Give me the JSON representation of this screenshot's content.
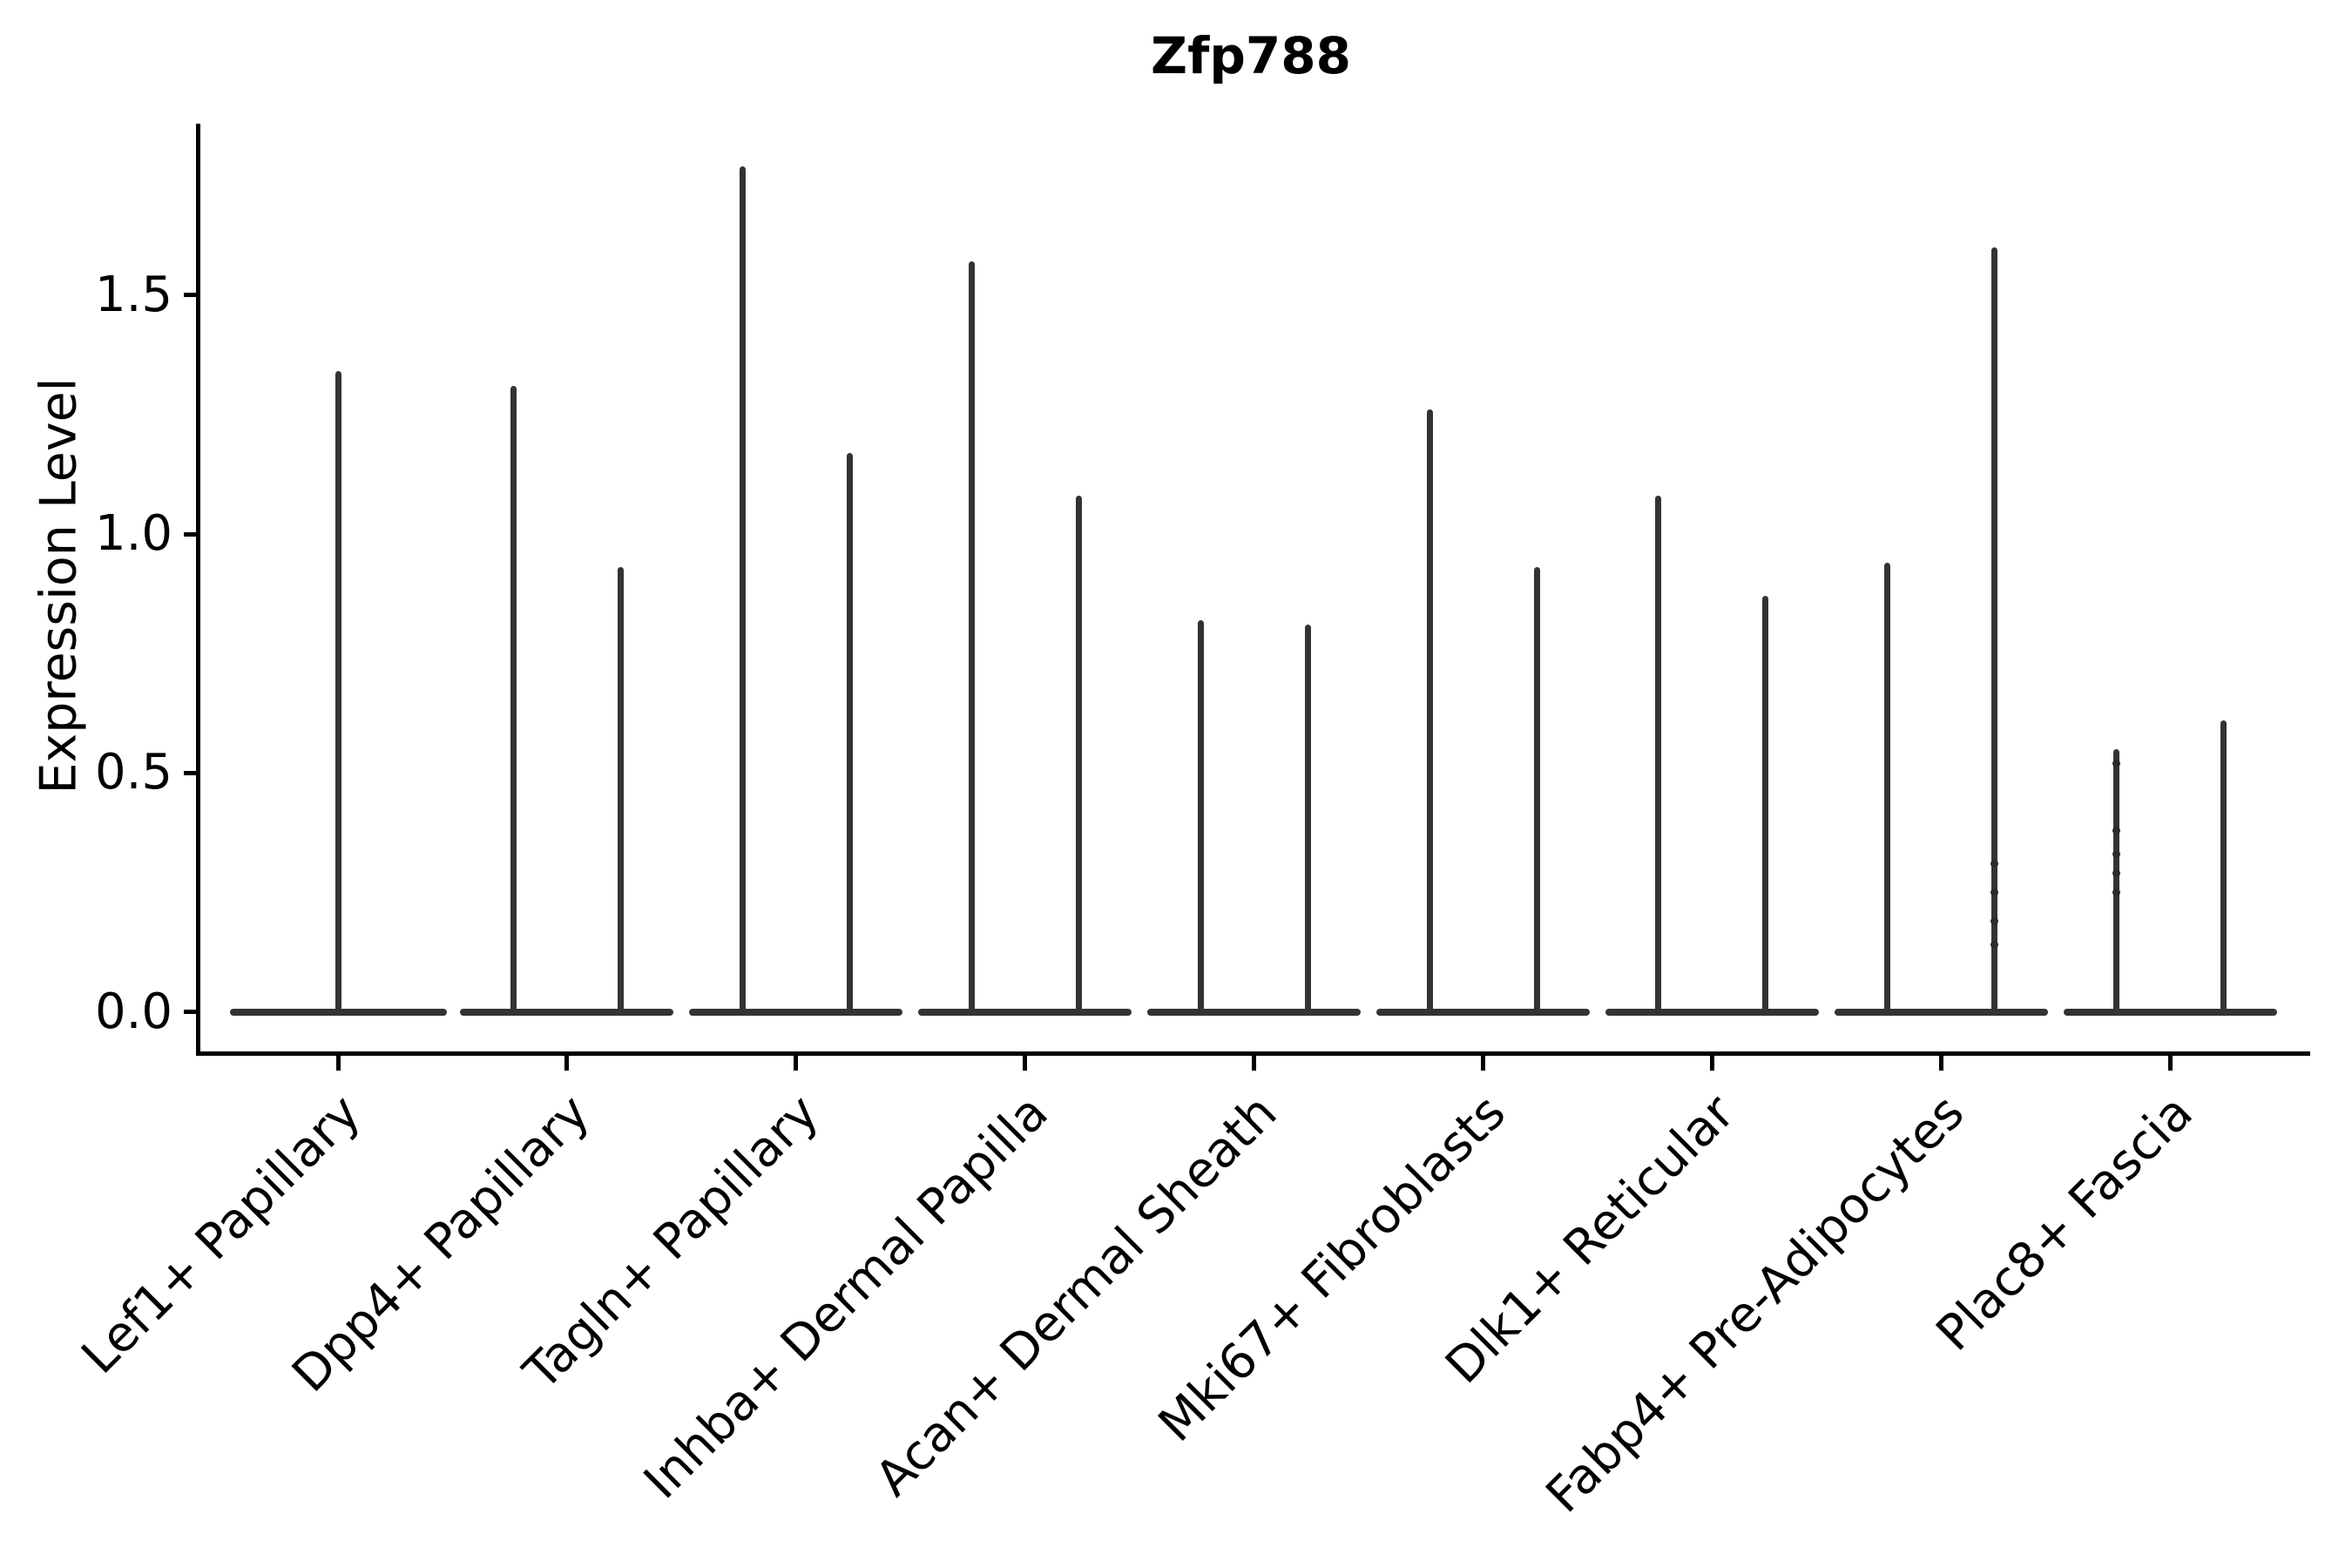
{
  "chart_data": {
    "type": "violin",
    "title": "Zfp788",
    "ylabel": "Expression Level",
    "xlabel": "",
    "ylim": [
      -0.09,
      1.86
    ],
    "grid": false,
    "legend": "none",
    "ytick_values": [
      0.0,
      0.5,
      1.0,
      1.5
    ],
    "ytick_labels": [
      "0.0",
      "0.5",
      "1.0",
      "1.5"
    ],
    "description": "Violin plot of Zfp788 expression; every violin has a wide flat base of zero-expression cells and a thin spike of expressing cells reaching the listed maximum.",
    "categories": [
      {
        "label": "Lef1+ Papillary",
        "violins": [
          {
            "max": 1.34,
            "points": []
          }
        ]
      },
      {
        "label": "Dpp4+ Papillary",
        "violins": [
          {
            "max": 1.31,
            "points": []
          },
          {
            "max": 0.93,
            "points": []
          }
        ]
      },
      {
        "label": "Tagln+ Papillary",
        "violins": [
          {
            "max": 1.77,
            "points": []
          },
          {
            "max": 1.17,
            "points": []
          }
        ]
      },
      {
        "label": "Inhba+ Dermal Papilla",
        "violins": [
          {
            "max": 1.57,
            "points": []
          },
          {
            "max": 1.08,
            "points": []
          }
        ]
      },
      {
        "label": "Acan+ Dermal Sheath",
        "violins": [
          {
            "max": 0.82,
            "points": []
          },
          {
            "max": 0.81,
            "points": []
          }
        ]
      },
      {
        "label": "Mki67+ Fibroblasts",
        "violins": [
          {
            "max": 1.26,
            "points": []
          },
          {
            "max": 0.93,
            "points": []
          }
        ]
      },
      {
        "label": "Dlk1+ Reticular",
        "violins": [
          {
            "max": 1.08,
            "points": []
          },
          {
            "max": 0.87,
            "points": []
          }
        ]
      },
      {
        "label": "Fabp4+ Pre-Adipocytes",
        "violins": [
          {
            "max": 0.94,
            "points": []
          },
          {
            "max": 1.6,
            "points": [
              0.31,
              0.25,
              0.19,
              0.14
            ]
          }
        ]
      },
      {
        "label": "Plac8+ Fascia",
        "violins": [
          {
            "max": 0.55,
            "points": [
              0.52,
              0.38,
              0.33,
              0.29,
              0.25
            ]
          },
          {
            "max": 0.61,
            "points": []
          }
        ]
      }
    ],
    "colors": {
      "violin": "#333333",
      "jitter_point": "#2b2b2b",
      "axis": "#000000",
      "text": "#000000",
      "background": "#ffffff"
    }
  }
}
